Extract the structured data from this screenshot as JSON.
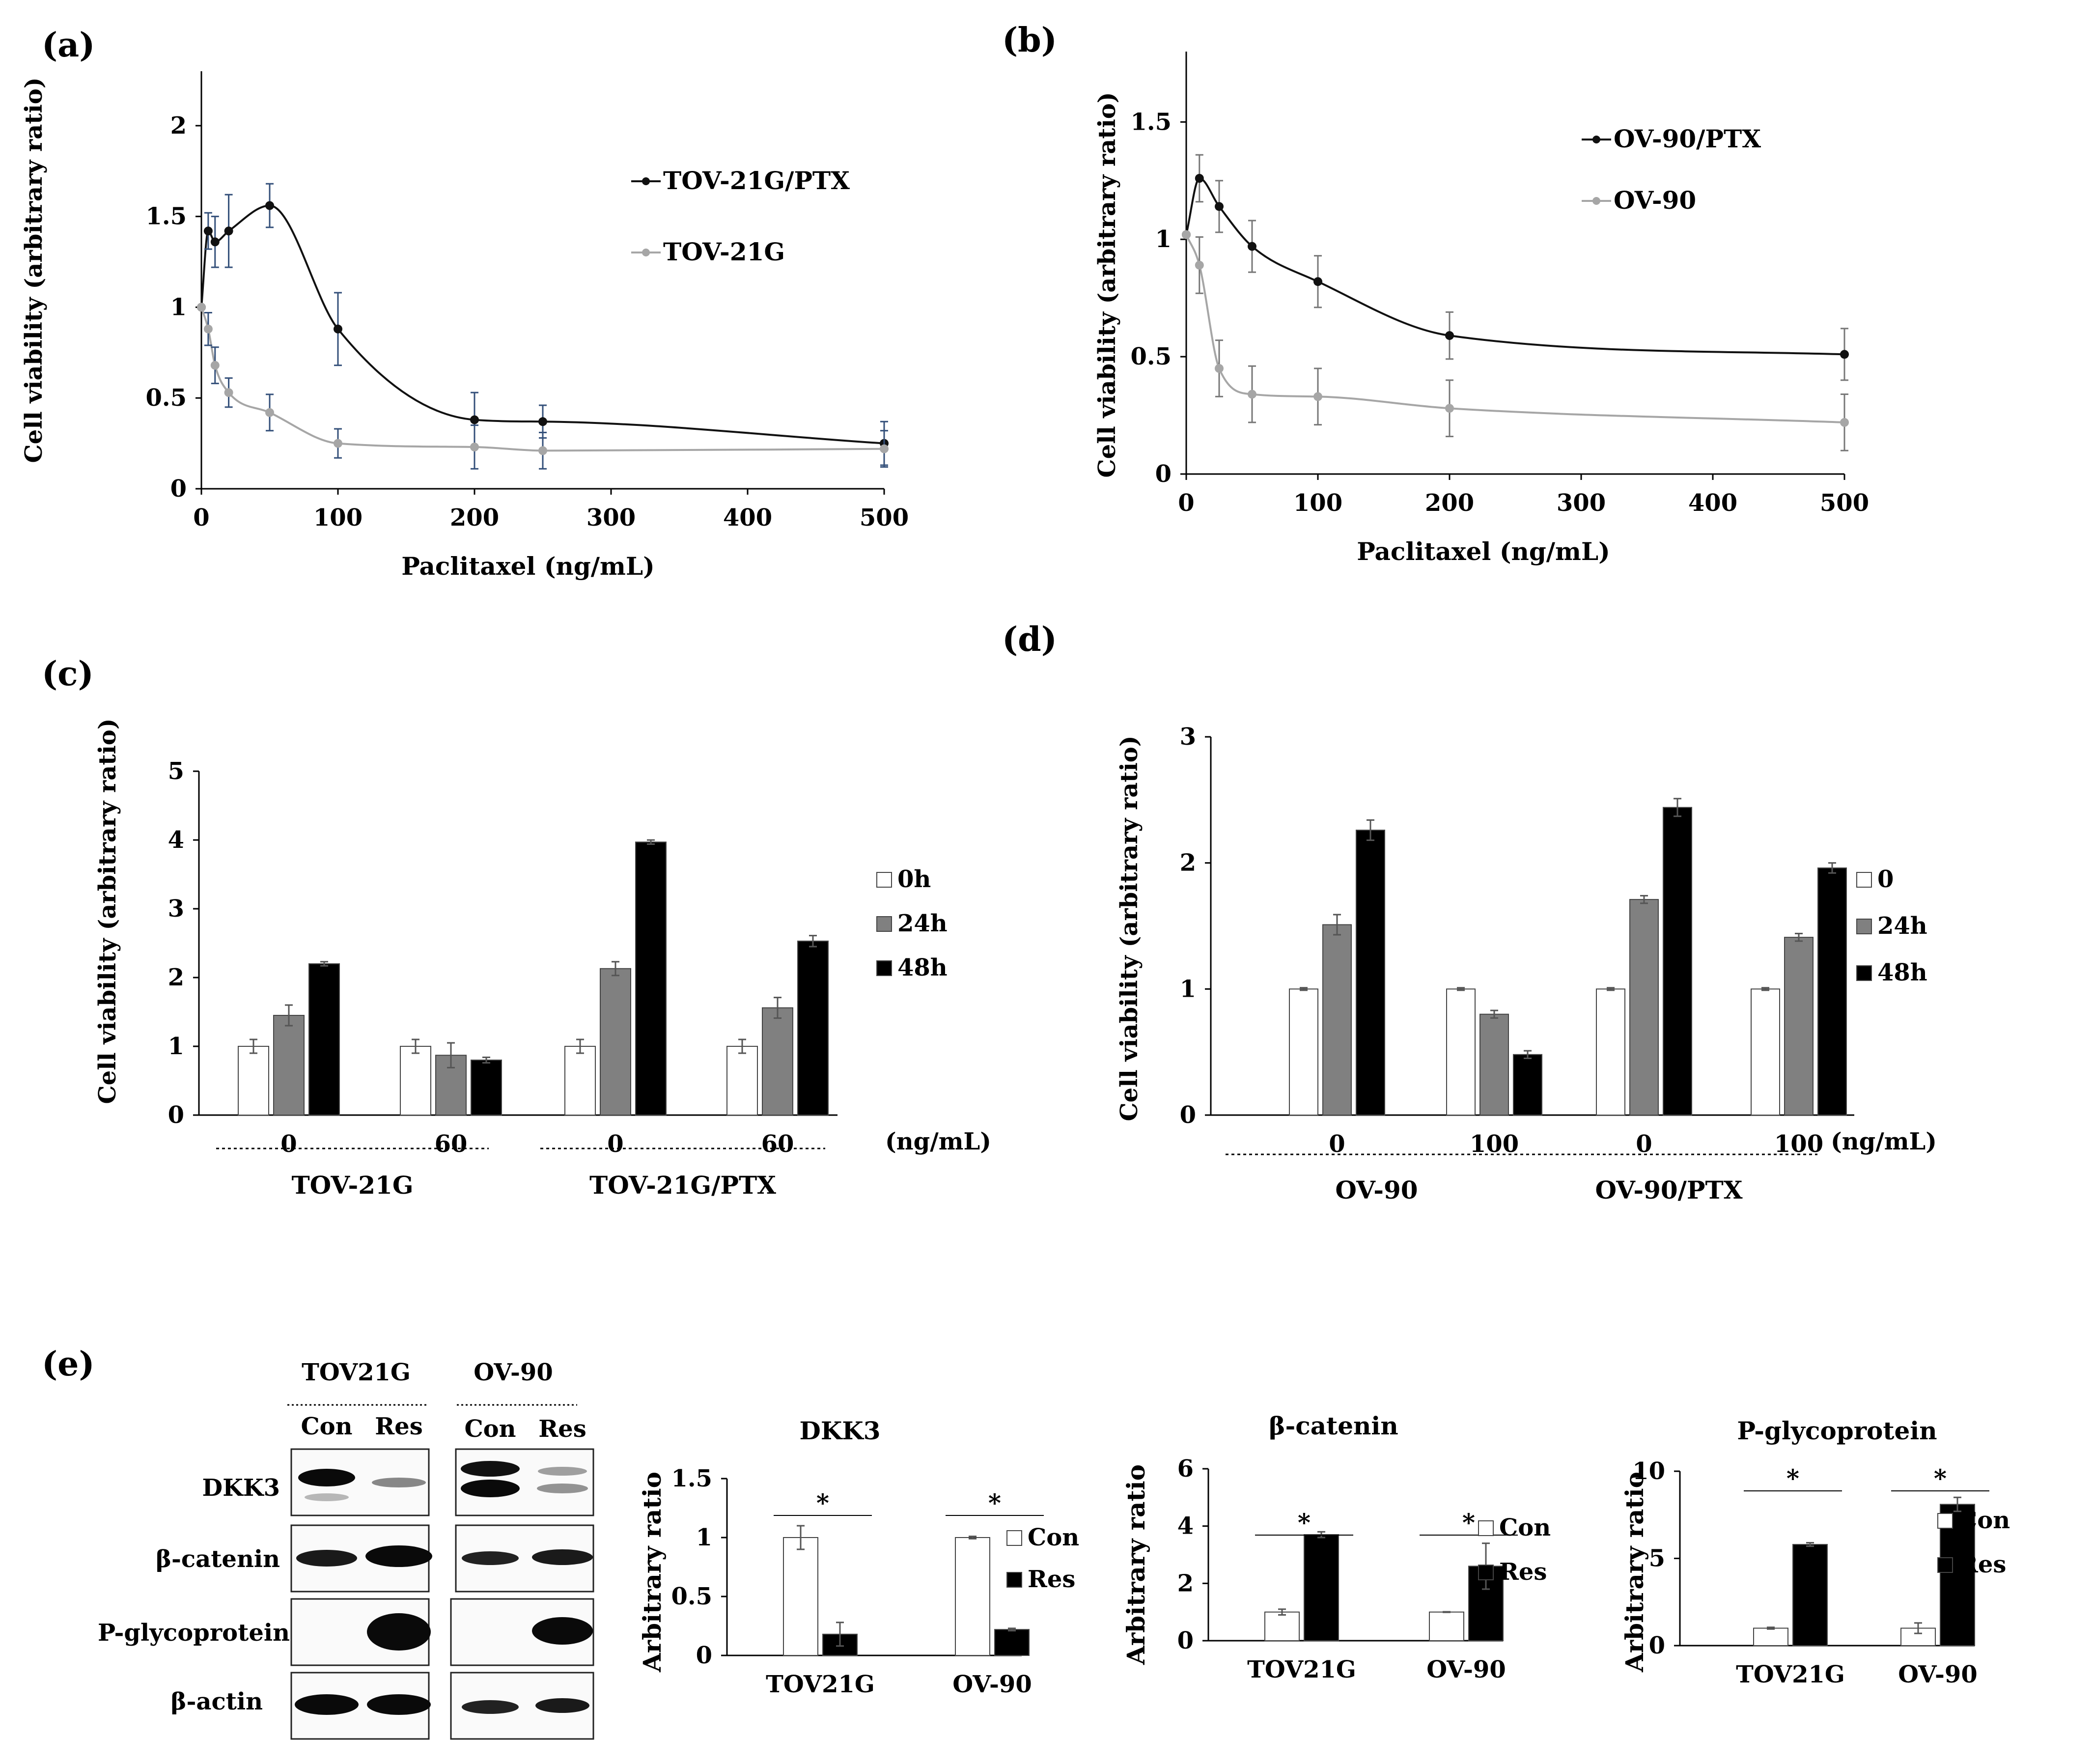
{
  "panels": {
    "a": "(a)",
    "b": "(b)",
    "c": "(c)",
    "d": "(d)",
    "e": "(e)"
  },
  "chart_data": [
    {
      "id": "a",
      "type": "line",
      "xlabel": "Paclitaxel (ng/mL)",
      "ylabel": "Cell viability (arbitrary ratio)",
      "xlim": [
        0,
        500
      ],
      "ylim": [
        0,
        2.3
      ],
      "xticks": [
        "0",
        "100",
        "200",
        "300",
        "400",
        "500"
      ],
      "xtick_values": [
        0,
        100,
        200,
        300,
        400,
        500
      ],
      "yticks": [
        "0",
        "0.5",
        "1",
        "1.5",
        "2"
      ],
      "ytick_values": [
        0,
        0.5,
        1,
        1.5,
        2
      ],
      "series": [
        {
          "name": "TOV-21G/PTX",
          "color": "#111111",
          "x": [
            0,
            5,
            10,
            20,
            50,
            100,
            200,
            250,
            500
          ],
          "y": [
            1.0,
            1.42,
            1.36,
            1.42,
            1.56,
            0.88,
            0.38,
            0.37,
            0.25
          ],
          "err": [
            0,
            0.1,
            0.14,
            0.2,
            0.12,
            0.2,
            0.15,
            0.09,
            0.12
          ]
        },
        {
          "name": "TOV-21G",
          "color": "#a6a6a6",
          "x": [
            0,
            5,
            10,
            20,
            50,
            100,
            200,
            250,
            500
          ],
          "y": [
            1.0,
            0.88,
            0.68,
            0.53,
            0.42,
            0.25,
            0.23,
            0.21,
            0.22
          ],
          "err": [
            0,
            0.09,
            0.1,
            0.08,
            0.1,
            0.08,
            0.12,
            0.1,
            0.1
          ]
        }
      ]
    },
    {
      "id": "b",
      "type": "line",
      "xlabel": "Paclitaxel (ng/mL)",
      "ylabel": "Cell viability (arbitrary ratio)",
      "xlim": [
        0,
        500
      ],
      "ylim": [
        0,
        1.8
      ],
      "xticks": [
        "0",
        "100",
        "200",
        "300",
        "400",
        "500"
      ],
      "xtick_values": [
        0,
        100,
        200,
        300,
        400,
        500
      ],
      "yticks": [
        "0",
        "0.5",
        "1",
        "1.5"
      ],
      "ytick_values": [
        0,
        0.5,
        1,
        1.5
      ],
      "series": [
        {
          "name": "OV-90/PTX",
          "color": "#111111",
          "x": [
            0,
            10,
            25,
            50,
            100,
            200,
            500
          ],
          "y": [
            1.02,
            1.26,
            1.14,
            0.97,
            0.82,
            0.59,
            0.51
          ],
          "err": [
            0,
            0.1,
            0.11,
            0.11,
            0.11,
            0.1,
            0.11
          ]
        },
        {
          "name": "OV-90",
          "color": "#a6a6a6",
          "x": [
            0,
            10,
            25,
            50,
            100,
            200,
            500
          ],
          "y": [
            1.02,
            0.89,
            0.45,
            0.34,
            0.33,
            0.28,
            0.22
          ],
          "err": [
            0,
            0.12,
            0.12,
            0.12,
            0.12,
            0.12,
            0.12
          ]
        }
      ]
    },
    {
      "id": "c",
      "type": "bar",
      "ylabel": "Cell viability (arbitrary ratio)",
      "ylim": [
        0,
        5
      ],
      "yticks": [
        "0",
        "1",
        "2",
        "3",
        "4",
        "5"
      ],
      "ytick_values": [
        0,
        1,
        2,
        3,
        4,
        5
      ],
      "categories": [
        "0",
        "60",
        "0",
        "60"
      ],
      "groups": [
        "TOV-21G",
        "TOV-21G/PTX"
      ],
      "unit": "(ng/mL)",
      "series": [
        {
          "name": "0h",
          "color": "#ffffff",
          "values": [
            1.0,
            1.0,
            1.0,
            1.0
          ],
          "err": [
            0.1,
            0.1,
            0.1,
            0.1
          ]
        },
        {
          "name": "24h",
          "color": "#808080",
          "values": [
            1.45,
            0.87,
            2.13,
            1.56
          ],
          "err": [
            0.15,
            0.18,
            0.1,
            0.15
          ]
        },
        {
          "name": "48h",
          "color": "#000000",
          "values": [
            2.2,
            0.8,
            3.97,
            2.53
          ],
          "err": [
            0.03,
            0.04,
            0.03,
            0.08
          ]
        }
      ]
    },
    {
      "id": "d",
      "type": "bar",
      "ylabel": "Cell viability (arbitrary ratio)",
      "ylim": [
        0,
        3
      ],
      "yticks": [
        "0",
        "1",
        "2",
        "3"
      ],
      "ytick_values": [
        0,
        1,
        2,
        3
      ],
      "categories": [
        "0",
        "100",
        "0",
        "100"
      ],
      "groups": [
        "OV-90",
        "OV-90/PTX"
      ],
      "unit": "(ng/mL)",
      "series": [
        {
          "name": "0",
          "color": "#ffffff",
          "values": [
            1.0,
            1.0,
            1.0,
            1.0
          ],
          "err": [
            0.01,
            0.01,
            0.01,
            0.01
          ]
        },
        {
          "name": "24h",
          "color": "#808080",
          "values": [
            1.51,
            0.8,
            1.71,
            1.41
          ],
          "err": [
            0.08,
            0.03,
            0.03,
            0.03
          ]
        },
        {
          "name": "48h",
          "color": "#000000",
          "values": [
            2.26,
            0.48,
            2.44,
            1.96
          ],
          "err": [
            0.08,
            0.03,
            0.07,
            0.04
          ]
        }
      ]
    },
    {
      "id": "e1",
      "type": "bar",
      "title": "DKK3",
      "ylabel": "Arbitrary ratio",
      "ylim": [
        0,
        1.5
      ],
      "yticks": [
        "0",
        "0.5",
        "1",
        "1.5"
      ],
      "ytick_values": [
        0,
        0.5,
        1,
        1.5
      ],
      "categories": [
        "TOV21G",
        "OV-90"
      ],
      "significance": "*",
      "series": [
        {
          "name": "Con",
          "color": "#ffffff",
          "values": [
            1.0,
            1.0
          ],
          "err": [
            0.1,
            0.01
          ]
        },
        {
          "name": "Res",
          "color": "#000000",
          "values": [
            0.18,
            0.22
          ],
          "err": [
            0.1,
            0.01
          ]
        }
      ]
    },
    {
      "id": "e2",
      "type": "bar",
      "title": "β-catenin",
      "ylabel": "Arbitrary ratio",
      "ylim": [
        0,
        6
      ],
      "yticks": [
        "0",
        "2",
        "4",
        "6"
      ],
      "ytick_values": [
        0,
        2,
        4,
        6
      ],
      "categories": [
        "TOV21G",
        "OV-90"
      ],
      "significance": "*",
      "series": [
        {
          "name": "Con",
          "color": "#ffffff",
          "values": [
            1.0,
            1.0
          ],
          "err": [
            0.1,
            0.01
          ]
        },
        {
          "name": "Res",
          "color": "#000000",
          "values": [
            3.7,
            2.6
          ],
          "err": [
            0.1,
            0.8
          ]
        }
      ]
    },
    {
      "id": "e3",
      "type": "bar",
      "title": "P-glycoprotein",
      "ylabel": "Arbitrary ratio",
      "ylim": [
        0,
        10
      ],
      "yticks": [
        "0",
        "5",
        "10"
      ],
      "ytick_values": [
        0,
        5,
        10
      ],
      "categories": [
        "TOV21G",
        "OV-90"
      ],
      "significance": "*",
      "series": [
        {
          "name": "Con",
          "color": "#ffffff",
          "values": [
            1.0,
            1.0
          ],
          "err": [
            0.05,
            0.3
          ]
        },
        {
          "name": "Res",
          "color": "#000000",
          "values": [
            5.8,
            8.1
          ],
          "err": [
            0.1,
            0.4
          ]
        }
      ]
    }
  ],
  "blots": {
    "cell_lines": [
      "TOV21G",
      "OV-90"
    ],
    "lanes": [
      "Con",
      "Res"
    ],
    "rows": [
      "DKK3",
      "β-catenin",
      "P-glycoprotein",
      "β-actin"
    ]
  }
}
